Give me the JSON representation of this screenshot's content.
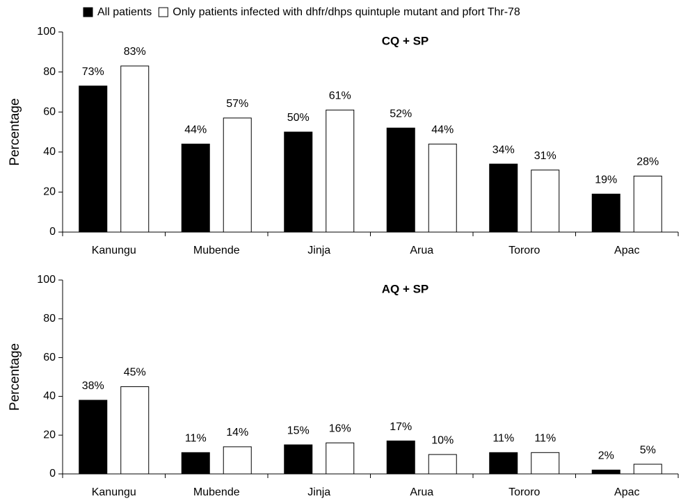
{
  "chart_data": [
    {
      "type": "bar",
      "title": "CQ + SP",
      "ylabel": "Percentage",
      "categories": [
        "Kanungu",
        "Mubende",
        "Jinja",
        "Arua",
        "Tororo",
        "Apac"
      ],
      "series": [
        {
          "name": "All patients",
          "color": "#000000",
          "values": [
            73,
            44,
            50,
            52,
            34,
            19
          ],
          "value_labels": [
            "73%",
            "44%",
            "50%",
            "52%",
            "34%",
            "19%"
          ]
        },
        {
          "name": "Only patients infected with dhfr/dhps quintuple mutant and pfort Thr-78",
          "color": "#ffffff",
          "values": [
            83,
            57,
            61,
            44,
            31,
            28
          ],
          "value_labels": [
            "83%",
            "57%",
            "61%",
            "44%",
            "31%",
            "28%"
          ]
        }
      ],
      "ylim": [
        0,
        100
      ],
      "yticks": [
        0,
        20,
        40,
        60,
        80,
        100
      ],
      "legend": "top"
    },
    {
      "type": "bar",
      "title": "AQ + SP",
      "ylabel": "Percentage",
      "categories": [
        "Kanungu",
        "Mubende",
        "Jinja",
        "Arua",
        "Tororo",
        "Apac"
      ],
      "series": [
        {
          "color": "#000000",
          "values": [
            38,
            11,
            15,
            17,
            11,
            2
          ],
          "value_labels": [
            "38%",
            "11%",
            "15%",
            "17%",
            "11%",
            "2%"
          ]
        },
        {
          "color": "#ffffff",
          "values": [
            45,
            14,
            16,
            10,
            11,
            5
          ],
          "value_labels": [
            "45%",
            "14%",
            "16%",
            "10%",
            "11%",
            "5%"
          ]
        }
      ],
      "ylim": [
        0,
        100
      ],
      "yticks": [
        0,
        20,
        40,
        60,
        80,
        100
      ]
    }
  ]
}
